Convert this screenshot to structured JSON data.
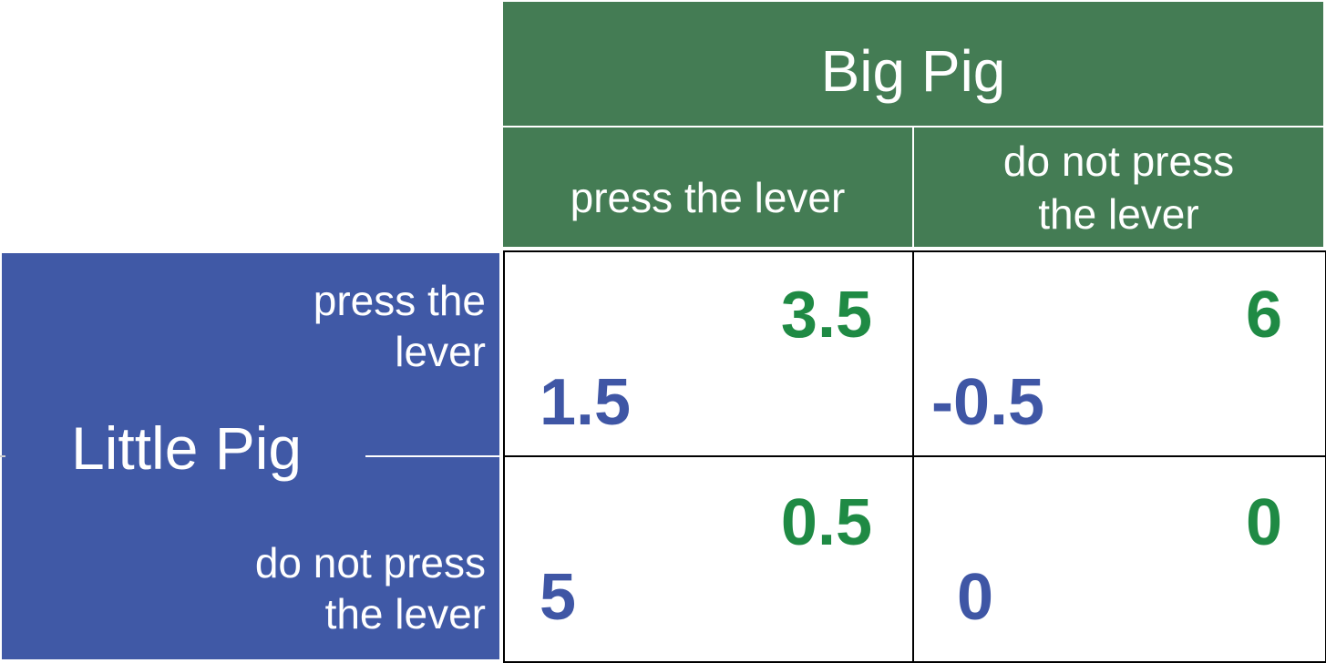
{
  "big_pig": {
    "title": "Big Pig",
    "columns": [
      "press the lever",
      "do not press\nthe lever"
    ]
  },
  "little_pig": {
    "title": "Little Pig",
    "rows": [
      "press the \nlever",
      "do not press\nthe lever"
    ]
  },
  "payoffs": [
    [
      {
        "big_pig": "3.5",
        "little_pig": "1.5"
      },
      {
        "big_pig": "6",
        "little_pig": "-0.5"
      }
    ],
    [
      {
        "big_pig": "0.5",
        "little_pig": "5"
      },
      {
        "big_pig": "0",
        "little_pig": "0"
      }
    ]
  ],
  "colors": {
    "big_pig_header": "#447c54",
    "little_pig_panel": "#4059a6",
    "big_pig_payoff": "#1f8a44",
    "little_pig_payoff": "#3f56a5"
  }
}
